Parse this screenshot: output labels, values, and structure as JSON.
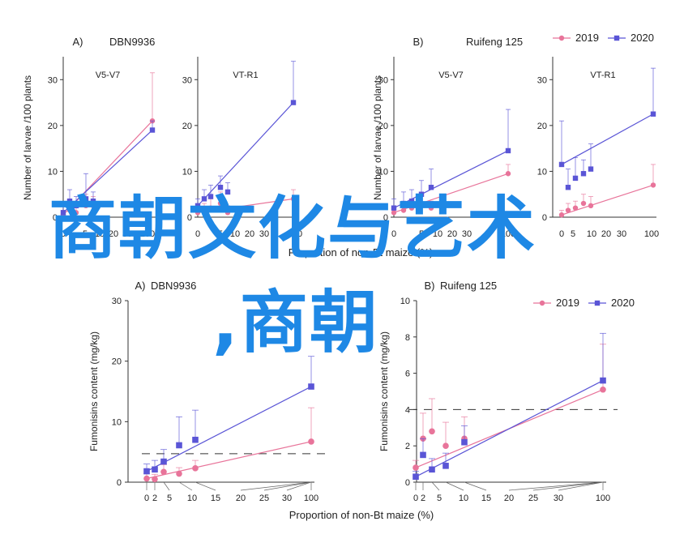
{
  "overlay": {
    "line1": "商朝文化与艺术",
    "line2": ",商朝"
  },
  "colors": {
    "series_2019": "#e8749a",
    "series_2020": "#5a55d6",
    "overlay_text": "#1e88e5"
  },
  "chart_data": [
    {
      "id": "top-A",
      "type": "line",
      "panel_label": "A)",
      "title": "DBN9936",
      "ylabel": "Number of larvae /100 plants",
      "xlabel": "",
      "ylim": [
        0,
        35
      ],
      "yticks": [
        0,
        10,
        20,
        30
      ],
      "xtick_labels": [
        "0",
        "5",
        "10",
        "20",
        "30",
        "100"
      ],
      "facets": [
        {
          "name": "V5-V7",
          "series": [
            {
              "name": "2019",
              "x": [
                0,
                1,
                2,
                5,
                10,
                100
              ],
              "y": [
                0.5,
                1.5,
                1.0,
                2.5,
                2.5,
                21
              ],
              "err": [
                1.0,
                2.0,
                2.0,
                2.5,
                2.0,
                10.5
              ]
            },
            {
              "name": "2020",
              "x": [
                0,
                1,
                2,
                5,
                10,
                100
              ],
              "y": [
                1.0,
                3.5,
                2.5,
                4.0,
                3.5,
                19
              ],
              "err": [
                1.5,
                2.5,
                2.0,
                5.5,
                2.0,
                2.0
              ]
            }
          ]
        },
        {
          "name": "VT-R1",
          "series": [
            {
              "name": "2019",
              "x": [
                0,
                1,
                2,
                5,
                10,
                100
              ],
              "y": [
                1.0,
                1.5,
                2.0,
                3.0,
                1.0,
                4.0
              ],
              "err": [
                1.0,
                1.5,
                2.0,
                2.5,
                1.5,
                2.0
              ]
            },
            {
              "name": "2020",
              "x": [
                0,
                1,
                2,
                5,
                10,
                100
              ],
              "y": [
                2.5,
                4.0,
                4.5,
                6.5,
                5.5,
                25
              ],
              "err": [
                1.5,
                2.0,
                2.5,
                2.5,
                2.0,
                9.0
              ]
            }
          ]
        }
      ]
    },
    {
      "id": "top-B",
      "type": "line",
      "panel_label": "B)",
      "title": "Ruifeng 125",
      "ylabel": "Number of larvae /100 plants",
      "xlabel": "Proportion of non-Bt maize (%)",
      "ylim": [
        0,
        35
      ],
      "yticks": [
        0,
        10,
        20,
        30
      ],
      "xtick_labels": [
        "0",
        "5",
        "10",
        "20",
        "30",
        "100"
      ],
      "legend": {
        "position": "top-right",
        "entries": [
          "2019",
          "2020"
        ]
      },
      "facets": [
        {
          "name": "V5-V7",
          "series": [
            {
              "name": "2019",
              "x": [
                0,
                1,
                2,
                5,
                10,
                100
              ],
              "y": [
                1.0,
                1.5,
                2.0,
                2.5,
                2.0,
                9.5
              ],
              "err": [
                1.0,
                1.5,
                1.5,
                2.0,
                1.5,
                2.0
              ]
            },
            {
              "name": "2020",
              "x": [
                0,
                1,
                2,
                5,
                10,
                100
              ],
              "y": [
                2.0,
                3.0,
                3.5,
                5.0,
                6.5,
                14.5
              ],
              "err": [
                2.0,
                2.5,
                2.5,
                3.0,
                4.0,
                9.0
              ]
            }
          ]
        },
        {
          "name": "VT-R1",
          "series": [
            {
              "name": "2019",
              "x": [
                0,
                1,
                2,
                5,
                10,
                100
              ],
              "y": [
                0.5,
                1.5,
                2.0,
                3.0,
                2.5,
                7.0
              ],
              "err": [
                1.0,
                1.5,
                1.5,
                2.0,
                2.0,
                4.5
              ]
            },
            {
              "name": "2020",
              "x": [
                0,
                1,
                2,
                5,
                10,
                100
              ],
              "y": [
                11.5,
                6.5,
                8.5,
                9.5,
                10.5,
                22.5
              ],
              "err": [
                9.5,
                4.0,
                4.5,
                3.0,
                5.5,
                10.0
              ]
            }
          ]
        }
      ]
    },
    {
      "id": "bottom-A",
      "type": "scatter",
      "panel_label": "A)",
      "title": "DBN9936",
      "ylabel": "Fumonisins content (mg/kg)",
      "xlabel": "Proportion of non-Bt maize (%)",
      "ylim": [
        0,
        30
      ],
      "yticks": [
        0,
        10,
        20,
        30
      ],
      "xtick_labels": [
        "0",
        "2",
        "5",
        "10",
        "15",
        "20",
        "25",
        "30",
        "100"
      ],
      "threshold": 4.7,
      "series": [
        {
          "name": "2019",
          "x": [
            0,
            2,
            5,
            10,
            15,
            100
          ],
          "y": [
            0.6,
            0.5,
            1.7,
            1.4,
            2.3,
            6.7
          ],
          "err": [
            0.8,
            0.8,
            1.2,
            1.0,
            1.3,
            5.6
          ]
        },
        {
          "name": "2020",
          "x": [
            0,
            2,
            5,
            10,
            15,
            100
          ],
          "y": [
            1.8,
            2.1,
            3.4,
            6.1,
            7.0,
            15.8
          ],
          "err": [
            1.2,
            1.5,
            2.0,
            4.7,
            4.9,
            5.0
          ]
        }
      ]
    },
    {
      "id": "bottom-B",
      "type": "scatter",
      "panel_label": "B)",
      "title": "Ruifeng 125",
      "ylabel": "Fumonisins content (mg/kg)",
      "xlabel": "Proportion of non-Bt maize (%)",
      "ylim": [
        0,
        10
      ],
      "yticks": [
        0,
        2,
        4,
        6,
        8,
        10
      ],
      "xtick_labels": [
        "0",
        "2",
        "5",
        "10",
        "15",
        "20",
        "25",
        "30",
        "100"
      ],
      "threshold": 4,
      "legend": {
        "position": "top-right",
        "entries": [
          "2019",
          "2020"
        ]
      },
      "series": [
        {
          "name": "2019",
          "x": [
            0,
            2,
            5,
            10,
            15,
            100
          ],
          "y": [
            0.8,
            2.4,
            2.8,
            2.0,
            2.4,
            5.1
          ],
          "err": [
            0.4,
            1.4,
            1.8,
            1.3,
            1.2,
            2.5
          ]
        },
        {
          "name": "2020",
          "x": [
            0,
            2,
            5,
            10,
            15,
            100
          ],
          "y": [
            0.3,
            1.5,
            0.7,
            0.9,
            2.2,
            5.6
          ],
          "err": [
            0.3,
            0.9,
            0.6,
            0.7,
            0.9,
            2.6
          ]
        }
      ]
    }
  ]
}
